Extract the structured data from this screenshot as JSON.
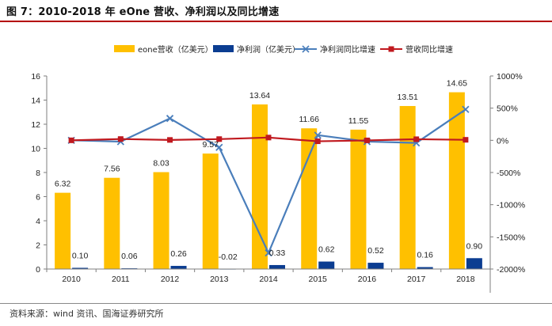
{
  "figure": {
    "title": "图 7：2010-2018 年 eOne 营收、净利润以及同比增速",
    "source": "资料来源：wind 资讯、国海证券研究所"
  },
  "colors": {
    "revenue_bar": "#ffc000",
    "profit_bar": "#0b3d91",
    "profit_growth_line": "#4a7ebb",
    "revenue_growth_line": "#c0191f",
    "title_rule": "#b40000"
  },
  "chart_data": {
    "type": "bar",
    "categories": [
      "2010",
      "2011",
      "2012",
      "2013",
      "2014",
      "2015",
      "2016",
      "2017",
      "2018"
    ],
    "category_labels": [
      "2010",
      "2011",
      "2012",
      "2013",
      "2014",
      "2015",
      "2016",
      "2017",
      "2018"
    ],
    "series": [
      {
        "name": "eone营收（亿美元）",
        "type": "bar",
        "axis": "left",
        "values": [
          6.32,
          7.56,
          8.03,
          9.57,
          13.64,
          11.66,
          11.55,
          13.51,
          14.65
        ],
        "labels": [
          "6.32",
          "7.56",
          "8.03",
          "9.57",
          "13.64",
          "11.66",
          "11.55",
          "13.51",
          "14.65"
        ]
      },
      {
        "name": "净利润（亿美元）",
        "type": "bar",
        "axis": "left",
        "values": [
          0.1,
          0.06,
          0.26,
          -0.02,
          0.33,
          0.62,
          0.52,
          0.16,
          0.9
        ],
        "labels": [
          "0.10",
          "0.06",
          "0.26",
          "-0.02",
          "0.33",
          "0.62",
          "0.52",
          "0.16",
          "0.90"
        ]
      },
      {
        "name": "净利润同比增速",
        "type": "line",
        "axis": "right",
        "marker": "x",
        "values": [
          0,
          -20,
          340,
          -110,
          -1750,
          80,
          -20,
          -40,
          480
        ]
      },
      {
        "name": "营收同比增速",
        "type": "line",
        "axis": "right",
        "marker": "square",
        "values": [
          0,
          20,
          6,
          19,
          43,
          -15,
          -1,
          17,
          8
        ]
      }
    ],
    "y_left": {
      "min": 0,
      "max": 16,
      "ticks": [
        0,
        2,
        4,
        6,
        8,
        10,
        12,
        14,
        16
      ]
    },
    "y_right": {
      "min": -2000,
      "max": 1000,
      "ticks": [
        1000,
        500,
        0,
        -500,
        -1000,
        -1500,
        -2000
      ],
      "tick_labels": [
        "1000%",
        "500%",
        "0%",
        "-500%",
        "-1000%",
        "-1500%",
        "-2000%"
      ]
    },
    "legend": {
      "position": "top"
    },
    "grid": false
  }
}
